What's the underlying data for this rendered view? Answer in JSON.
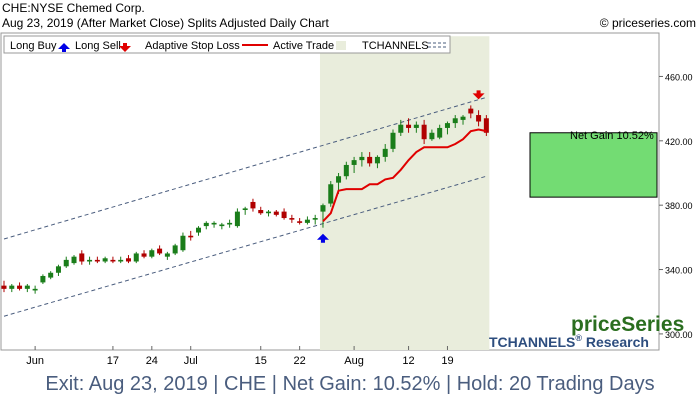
{
  "header": {
    "title": "CHE:NYSE Chemed Corp.",
    "subtitle": "Aug 23, 2019 (After Market Close)  Splits Adjusted Daily Chart",
    "source": "© priceseries.com"
  },
  "legend": {
    "long_buy": "Long Buy",
    "long_sell": "Long Sell",
    "stop_loss": "Adaptive Stop Loss",
    "active_trade": "Active Trade",
    "tchannels": "TCHANNELS"
  },
  "annotations": {
    "net_gain": "Net Gain 10.52%",
    "brand": "priceSeries",
    "brand_sub_1": "TCHANNELS",
    "brand_sub_reg": "®",
    "brand_sub_2": " Research"
  },
  "footer": {
    "text": "Exit: Aug 23, 2019 | CHE | Net Gain: 10.52% | Hold: 20 Trading Days"
  },
  "colors": {
    "up": "#1a7d1a",
    "down": "#b00000",
    "stop": "#e00000",
    "active_shade": "#e9eddc",
    "gain_box": "#73dc73",
    "channel": "#4a5d7e",
    "buy_marker": "#0000e6",
    "sell_marker": "#e00000",
    "footer_text": "#4a5d7e",
    "brand_green": "#2a6e1f",
    "brand_blue": "#2d4d7e"
  },
  "chart_data": {
    "type": "candlestick",
    "y_range": [
      290,
      487
    ],
    "y_ticks": [
      300,
      340,
      380,
      420,
      460
    ],
    "y_tick_labels": [
      "300.00",
      "340.00",
      "380.00",
      "420.00",
      "460.00"
    ],
    "x_ticks": [
      {
        "index": 4,
        "label": "Jun"
      },
      {
        "index": 14,
        "label": "17"
      },
      {
        "index": 19,
        "label": "24"
      },
      {
        "index": 24,
        "label": "Jul"
      },
      {
        "index": 33,
        "label": "15"
      },
      {
        "index": 38,
        "label": "22"
      },
      {
        "index": 45,
        "label": "Aug"
      },
      {
        "index": 52,
        "label": "12"
      },
      {
        "index": 57,
        "label": "19"
      }
    ],
    "candles": [
      {
        "o": 330,
        "h": 333,
        "l": 326,
        "c": 328
      },
      {
        "o": 328,
        "h": 331,
        "l": 326,
        "c": 330
      },
      {
        "o": 330,
        "h": 332,
        "l": 327,
        "c": 328
      },
      {
        "o": 328,
        "h": 331,
        "l": 326,
        "c": 330
      },
      {
        "o": 327,
        "h": 330,
        "l": 325,
        "c": 328
      },
      {
        "o": 332,
        "h": 337,
        "l": 331,
        "c": 336
      },
      {
        "o": 335,
        "h": 339,
        "l": 334,
        "c": 338
      },
      {
        "o": 338,
        "h": 343,
        "l": 336,
        "c": 342
      },
      {
        "o": 342,
        "h": 348,
        "l": 341,
        "c": 346
      },
      {
        "o": 344,
        "h": 349,
        "l": 343,
        "c": 348
      },
      {
        "o": 350,
        "h": 352,
        "l": 343,
        "c": 345
      },
      {
        "o": 345,
        "h": 348,
        "l": 343,
        "c": 346
      },
      {
        "o": 346,
        "h": 348,
        "l": 344,
        "c": 345
      },
      {
        "o": 345,
        "h": 348,
        "l": 344,
        "c": 347
      },
      {
        "o": 346,
        "h": 348,
        "l": 344,
        "c": 345
      },
      {
        "o": 345,
        "h": 348,
        "l": 344,
        "c": 346
      },
      {
        "o": 347,
        "h": 349,
        "l": 344,
        "c": 345
      },
      {
        "o": 345,
        "h": 351,
        "l": 344,
        "c": 350
      },
      {
        "o": 350,
        "h": 352,
        "l": 347,
        "c": 348
      },
      {
        "o": 348,
        "h": 353,
        "l": 347,
        "c": 352
      },
      {
        "o": 353,
        "h": 355,
        "l": 349,
        "c": 350
      },
      {
        "o": 348,
        "h": 351,
        "l": 346,
        "c": 350
      },
      {
        "o": 350,
        "h": 356,
        "l": 349,
        "c": 355
      },
      {
        "o": 352,
        "h": 363,
        "l": 351,
        "c": 361
      },
      {
        "o": 361,
        "h": 364,
        "l": 358,
        "c": 360
      },
      {
        "o": 363,
        "h": 367,
        "l": 361,
        "c": 366
      },
      {
        "o": 367,
        "h": 370,
        "l": 365,
        "c": 369
      },
      {
        "o": 368,
        "h": 370,
        "l": 366,
        "c": 369
      },
      {
        "o": 367,
        "h": 369,
        "l": 365,
        "c": 368
      },
      {
        "o": 368,
        "h": 371,
        "l": 366,
        "c": 369
      },
      {
        "o": 367,
        "h": 378,
        "l": 366,
        "c": 376
      },
      {
        "o": 377,
        "h": 379,
        "l": 374,
        "c": 378
      },
      {
        "o": 382,
        "h": 384,
        "l": 376,
        "c": 378
      },
      {
        "o": 377,
        "h": 379,
        "l": 374,
        "c": 375
      },
      {
        "o": 375,
        "h": 377,
        "l": 373,
        "c": 376
      },
      {
        "o": 376,
        "h": 377,
        "l": 373,
        "c": 374
      },
      {
        "o": 376,
        "h": 378,
        "l": 371,
        "c": 372
      },
      {
        "o": 372,
        "h": 374,
        "l": 369,
        "c": 371
      },
      {
        "o": 370,
        "h": 372,
        "l": 368,
        "c": 369
      },
      {
        "o": 369,
        "h": 373,
        "l": 368,
        "c": 371
      },
      {
        "o": 371,
        "h": 374,
        "l": 368,
        "c": 372
      },
      {
        "o": 376,
        "h": 381,
        "l": 366,
        "c": 380
      },
      {
        "o": 381,
        "h": 395,
        "l": 379,
        "c": 393
      },
      {
        "o": 394,
        "h": 400,
        "l": 387,
        "c": 398
      },
      {
        "o": 398,
        "h": 407,
        "l": 396,
        "c": 405
      },
      {
        "o": 405,
        "h": 410,
        "l": 400,
        "c": 408
      },
      {
        "o": 408,
        "h": 413,
        "l": 404,
        "c": 410
      },
      {
        "o": 410,
        "h": 413,
        "l": 404,
        "c": 406
      },
      {
        "o": 406,
        "h": 411,
        "l": 403,
        "c": 410
      },
      {
        "o": 410,
        "h": 418,
        "l": 407,
        "c": 415
      },
      {
        "o": 415,
        "h": 427,
        "l": 413,
        "c": 425
      },
      {
        "o": 425,
        "h": 433,
        "l": 423,
        "c": 430
      },
      {
        "o": 430,
        "h": 434,
        "l": 425,
        "c": 428
      },
      {
        "o": 428,
        "h": 432,
        "l": 425,
        "c": 430
      },
      {
        "o": 430,
        "h": 433,
        "l": 418,
        "c": 421
      },
      {
        "o": 421,
        "h": 427,
        "l": 420,
        "c": 425
      },
      {
        "o": 422,
        "h": 430,
        "l": 421,
        "c": 428
      },
      {
        "o": 428,
        "h": 432,
        "l": 424,
        "c": 431
      },
      {
        "o": 431,
        "h": 436,
        "l": 428,
        "c": 434
      },
      {
        "o": 433,
        "h": 436,
        "l": 430,
        "c": 435
      },
      {
        "o": 440,
        "h": 442,
        "l": 434,
        "c": 437
      },
      {
        "o": 436,
        "h": 439,
        "l": 429,
        "c": 432
      },
      {
        "o": 434,
        "h": 436,
        "l": 423,
        "c": 425
      }
    ],
    "stop_loss": [
      {
        "index": 41,
        "value": 370
      },
      {
        "index": 42,
        "value": 375
      },
      {
        "index": 43,
        "value": 389
      },
      {
        "index": 44,
        "value": 390
      },
      {
        "index": 45,
        "value": 390
      },
      {
        "index": 46,
        "value": 390
      },
      {
        "index": 47,
        "value": 393
      },
      {
        "index": 48,
        "value": 393
      },
      {
        "index": 49,
        "value": 396
      },
      {
        "index": 50,
        "value": 397
      },
      {
        "index": 51,
        "value": 402
      },
      {
        "index": 52,
        "value": 408
      },
      {
        "index": 53,
        "value": 413
      },
      {
        "index": 54,
        "value": 416
      },
      {
        "index": 55,
        "value": 416
      },
      {
        "index": 56,
        "value": 416
      },
      {
        "index": 57,
        "value": 416
      },
      {
        "index": 58,
        "value": 418
      },
      {
        "index": 59,
        "value": 421
      },
      {
        "index": 60,
        "value": 426
      },
      {
        "index": 61,
        "value": 427
      },
      {
        "index": 62,
        "value": 426
      }
    ],
    "channel_upper": {
      "start_index": 0,
      "start": 359,
      "end_index": 62,
      "end": 447
    },
    "channel_lower": {
      "start_index": 0,
      "start": 311,
      "end_index": 62,
      "end": 398
    },
    "active_trade": {
      "start_index": 41,
      "end_index": 62
    },
    "gain_box": {
      "low": 385,
      "high": 425
    },
    "buy_signal": {
      "index": 41,
      "price": 366
    },
    "sell_signal": {
      "index": 61,
      "price": 442
    },
    "net_gain_percent": 10.52
  }
}
